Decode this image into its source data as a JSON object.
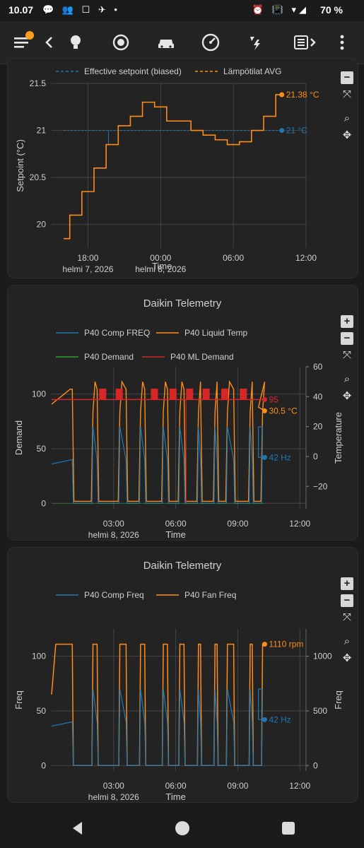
{
  "status": {
    "time": "10.07",
    "left_icons": "💬 👥 ☐ ✈ •",
    "right_icons": "⏰ 📳 ▾◢",
    "battery": "70 %"
  },
  "toolbar": {
    "icons": [
      "menu-icon",
      "chevron-left-icon",
      "lightbulb-icon",
      "gauge-circle-icon",
      "car-icon",
      "speedometer-icon",
      "weather-flash-icon",
      "heat-pump-icon",
      "more-vert-icon"
    ]
  },
  "chart1": {
    "chart_data": {
      "type": "line",
      "legend": [
        "Effective setpoint (biased)",
        "Lämpötilat AVG"
      ],
      "ylabel": "Setpoint (°C)",
      "xlabel": "Time",
      "x_ticks": [
        "18:00",
        "00:00",
        "06:00",
        "12:00"
      ],
      "x_sublabels": [
        "helmi 7, 2026",
        "helmi 8, 2026"
      ],
      "y_ticks": [
        "20",
        "20.5",
        "21",
        "21.5"
      ],
      "ylim": [
        19.75,
        21.5
      ],
      "series": [
        {
          "name": "Effective setpoint (biased)",
          "color": "#1f77b4",
          "x_hours": [
            -8,
            10
          ],
          "values": [
            21,
            21
          ],
          "last_label": "21 °C"
        },
        {
          "name": "Lämpötilat AVG",
          "color": "#ff8c1a",
          "x_hours": [
            -8,
            -7,
            -6,
            -5,
            -4,
            -3,
            -2,
            -1,
            0,
            1,
            2,
            3,
            4,
            5,
            6,
            7,
            8,
            9,
            10
          ],
          "values": [
            19.85,
            20.1,
            20.35,
            20.6,
            20.85,
            21.05,
            21.15,
            21.3,
            21.25,
            21.1,
            21.1,
            21.0,
            20.95,
            20.9,
            20.85,
            20.88,
            21.0,
            21.15,
            21.38
          ],
          "last_label": "21.38 °C"
        }
      ]
    }
  },
  "chart2": {
    "chart_data": {
      "type": "line",
      "title": "Daikin Telemetry",
      "legend": [
        "P40 Comp FREQ",
        "P40 Liquid Temp",
        "P40 Demand",
        "P40 ML Demand"
      ],
      "ylabel": "Demand",
      "y2label": "Temperature",
      "xlabel": "Time",
      "x_ticks": [
        "03:00",
        "06:00",
        "09:00",
        "12:00"
      ],
      "x_sublabel": "helmi 8, 2026",
      "y_ticks": [
        "0",
        "50",
        "100"
      ],
      "y2_ticks": [
        "−20",
        "0",
        "20",
        "40",
        "60"
      ],
      "ylim": [
        -5,
        125
      ],
      "y2lim": [
        -35,
        60
      ],
      "series": [
        {
          "name": "P40 Comp FREQ",
          "color": "#1f77b4",
          "last_label": "42 Hz"
        },
        {
          "name": "P40 Liquid Temp",
          "color": "#ff8c1a",
          "last_label": "30.5 °C"
        },
        {
          "name": "P40 Demand",
          "color": "#2ca02c"
        },
        {
          "name": "P40 ML Demand",
          "color": "#d62728",
          "last_label": "95"
        }
      ]
    }
  },
  "chart3": {
    "chart_data": {
      "type": "line",
      "title": "Daikin Telemetry",
      "legend": [
        "P40 Comp Freq",
        "P40 Fan Freq"
      ],
      "ylabel": "Freq",
      "y2label": "Freq",
      "xlabel": "Time",
      "x_ticks": [
        "03:00",
        "06:00",
        "09:00",
        "12:00"
      ],
      "x_sublabel": "helmi 8, 2026",
      "y_ticks": [
        "0",
        "50",
        "100"
      ],
      "y2_ticks": [
        "0",
        "500",
        "1000"
      ],
      "ylim": [
        -5,
        125
      ],
      "y2lim": [
        -50,
        1250
      ],
      "series": [
        {
          "name": "P40 Comp Freq",
          "color": "#1f77b4",
          "last_label": "42 Hz"
        },
        {
          "name": "P40 Fan Freq",
          "color": "#ff8c1a",
          "last_label": "1110 rpm"
        }
      ]
    }
  },
  "controls": {
    "zoom_in": "+",
    "zoom_out": "−",
    "autoscale": "⤧",
    "zoom": "⌕",
    "pan": "✥"
  }
}
